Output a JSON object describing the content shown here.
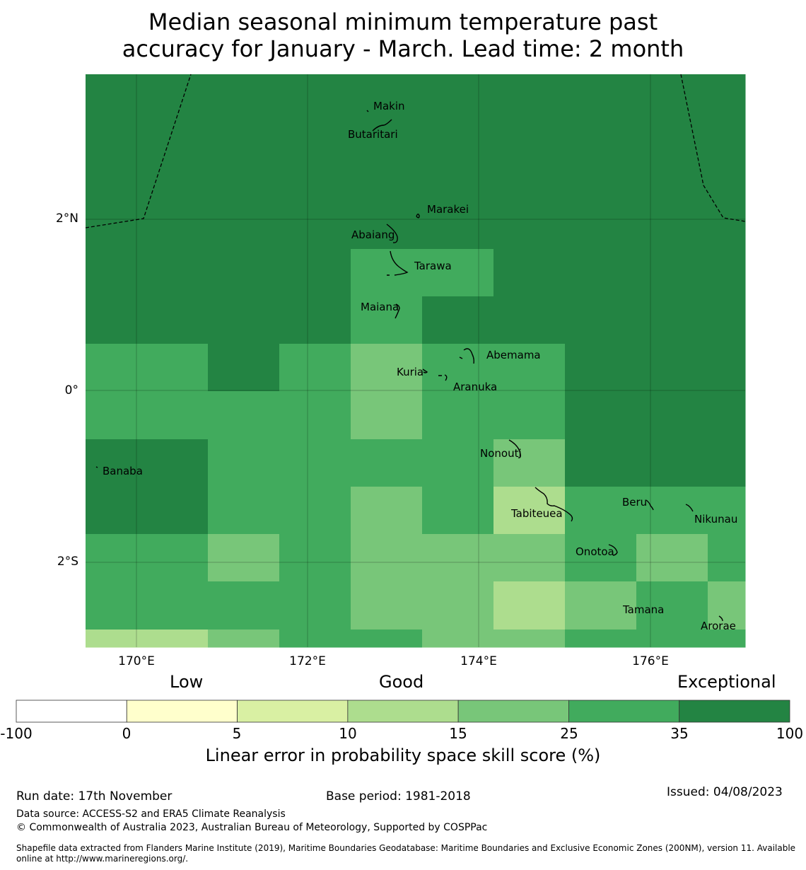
{
  "title": {
    "line1": "Median seasonal minimum temperature past",
    "line2": "accuracy for January - March. Lead time: 2 month"
  },
  "map": {
    "lat_labels": [
      "2°N",
      "0°",
      "2°S"
    ],
    "lon_labels": [
      "170°E",
      "172°E",
      "174°E",
      "176°E"
    ],
    "islands": [
      "Makin",
      "Butaritari",
      "Marakei",
      "Abaiang",
      "Tarawa",
      "Maiana",
      "Abemama",
      "Kuria",
      "Aranuka",
      "Nonouti",
      "Banaba",
      "Beru",
      "Tabiteuea",
      "Nikunau",
      "Onotoa",
      "Tamana",
      "Arorae"
    ],
    "skill_grid": [
      [
        6,
        6,
        6,
        6,
        6,
        6,
        6,
        6,
        6
      ],
      [
        6,
        6,
        6,
        6,
        6,
        6,
        6,
        6,
        6
      ],
      [
        6,
        6,
        6,
        6,
        6,
        6,
        6,
        6,
        6
      ],
      [
        6,
        6,
        6,
        5,
        5,
        6,
        6,
        6,
        6
      ],
      [
        6,
        6,
        6,
        5,
        6,
        6,
        6,
        6,
        6
      ],
      [
        5,
        6,
        5,
        4,
        5,
        5,
        6,
        6,
        6
      ],
      [
        5,
        5,
        5,
        4,
        5,
        5,
        6,
        6,
        6
      ],
      [
        6,
        5,
        5,
        5,
        5,
        4,
        6,
        6,
        6
      ],
      [
        6,
        5,
        5,
        4,
        5,
        3,
        5,
        5,
        5
      ],
      [
        5,
        4,
        5,
        4,
        4,
        4,
        5,
        4,
        5
      ],
      [
        5,
        5,
        5,
        4,
        4,
        3,
        4,
        5,
        4
      ],
      [
        3,
        4,
        5,
        5,
        4,
        4,
        5,
        5,
        5
      ]
    ]
  },
  "colorbar": {
    "category_labels": [
      "Low",
      "Good",
      "Exceptional"
    ],
    "colors": [
      "#ffffff",
      "#ffffcc",
      "#d9f0a3",
      "#addd8e",
      "#78c679",
      "#41ab5d",
      "#238443"
    ],
    "ticks": [
      "-100",
      "0",
      "5",
      "10",
      "15",
      "25",
      "35",
      "100"
    ],
    "title": "Linear error in probability space skill score (%)"
  },
  "footer": {
    "run_date": "Run date: 17th November",
    "base_period": "Base period: 1981-2018",
    "issued": "Issued: 04/08/2023",
    "data_source": "Data source: ACCESS-S2 and ERA5 Climate Reanalysis",
    "copyright": "© Commonwealth of Australia 2023, Australian Bureau of Meteorology, Supported by COSPPac",
    "shapefile": "Shapefile data extracted from Flanders Marine Institute (2019), Maritime Boundaries Geodatabase: Maritime Boundaries and Exclusive Economic Zones (200NM), version 11. Available online at http://www.marineregions.org/."
  }
}
